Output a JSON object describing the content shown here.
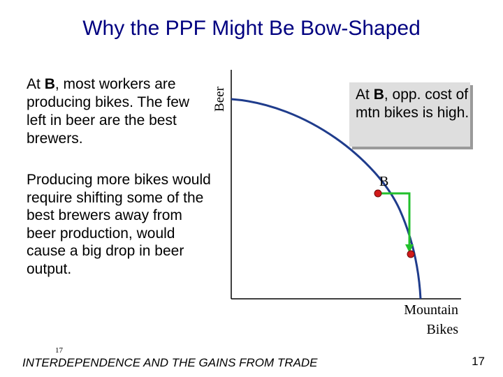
{
  "slide": {
    "title": "Why the PPF Might Be Bow-Shaped",
    "paragraph1": {
      "prefix": "At ",
      "bold": "B",
      "rest": ", most workers are producing bikes. The few left in beer are the best brewers."
    },
    "paragraph2": "Producing more bikes would require shifting some of the best brewers away from beer production, would cause a big drop in beer output.",
    "callout": {
      "prefix": "At ",
      "bold": "B",
      "rest": ", opp. cost of mtn bikes is high."
    },
    "footer": {
      "small_number": "17",
      "course_title": "INTERDEPENDENCE AND THE GAINS FROM TRADE",
      "page_number": "17"
    }
  },
  "diagram": {
    "y_axis_label": "Beer",
    "x_axis_label_line1": "Mountain",
    "x_axis_label_line2": "Bikes",
    "point_label": "B",
    "colors": {
      "title": "#000080",
      "curve": "#1f3c8c",
      "axis": "#000000",
      "point": "#d11a1a",
      "arrow": "#22c02c",
      "callout_bg": "#dedede"
    }
  }
}
